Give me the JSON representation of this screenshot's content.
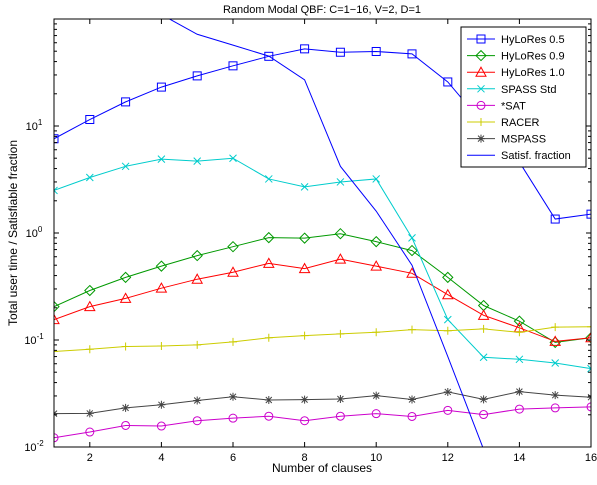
{
  "chart_data": {
    "type": "line",
    "title": "Random Modal QBF: C=1−16, V=2, D=1",
    "xlabel": "Number of clauses",
    "ylabel": "Total user time / Satisfiable fraction",
    "xlim": [
      1,
      16
    ],
    "ylim": [
      0.01,
      100
    ],
    "yscale": "log",
    "x_ticks": [
      2,
      4,
      6,
      8,
      10,
      12,
      14,
      16
    ],
    "x_tick_labels": [
      "2",
      "4",
      "6",
      "8",
      "10",
      "12",
      "14",
      "16"
    ],
    "y_ticks": [
      0.01,
      0.1,
      1,
      10
    ],
    "y_tick_labels": [
      {
        "base": "10",
        "exp": "-2"
      },
      {
        "base": "10",
        "exp": "-1"
      },
      {
        "base": "10",
        "exp": "0"
      },
      {
        "base": "10",
        "exp": "1"
      }
    ],
    "grid": false,
    "legend_position": "top-right",
    "x": [
      1,
      2,
      3,
      4,
      5,
      6,
      7,
      8,
      9,
      10,
      11,
      12,
      13,
      14,
      15,
      16
    ],
    "series": [
      {
        "name": "HyLoRes 0.5",
        "color": "#0000ff",
        "marker": "square",
        "values": [
          7.6,
          11.5,
          16.8,
          23.1,
          29.4,
          36.5,
          44.8,
          52.6,
          48.9,
          49.7,
          47.2,
          25.8,
          10.4,
          4.6,
          1.35,
          1.5
        ]
      },
      {
        "name": "HyLoRes 0.9",
        "color": "#009900",
        "marker": "diamond",
        "values": [
          0.205,
          0.29,
          0.385,
          0.49,
          0.615,
          0.745,
          0.905,
          0.895,
          0.985,
          0.83,
          0.685,
          0.385,
          0.21,
          0.15,
          0.095,
          0.105
        ]
      },
      {
        "name": "HyLoRes 1.0",
        "color": "#ff0000",
        "marker": "triangle",
        "values": [
          0.155,
          0.205,
          0.245,
          0.305,
          0.37,
          0.43,
          0.52,
          0.465,
          0.57,
          0.49,
          0.42,
          0.265,
          0.17,
          0.13,
          0.097,
          0.105
        ]
      },
      {
        "name": "SPASS Std",
        "color": "#00cccc",
        "marker": "x",
        "values": [
          2.5,
          3.3,
          4.2,
          4.9,
          4.7,
          5.0,
          3.2,
          2.7,
          3.0,
          3.2,
          0.9,
          0.155,
          0.069,
          0.066,
          0.061,
          0.054
        ]
      },
      {
        "name": "*SAT",
        "color": "#cc00cc",
        "marker": "circle",
        "values": [
          0.0122,
          0.0138,
          0.0159,
          0.0157,
          0.0176,
          0.0186,
          0.0194,
          0.0176,
          0.0194,
          0.0205,
          0.0193,
          0.022,
          0.0201,
          0.0226,
          0.0232,
          0.0237
        ]
      },
      {
        "name": "RACER",
        "color": "#cccc00",
        "marker": "plus",
        "values": [
          0.078,
          0.082,
          0.087,
          0.088,
          0.09,
          0.096,
          0.105,
          0.11,
          0.114,
          0.118,
          0.125,
          0.122,
          0.127,
          0.118,
          0.132,
          0.133
        ]
      },
      {
        "name": "MSPASS",
        "color": "#444444",
        "marker": "asterisk",
        "values": [
          0.0205,
          0.0206,
          0.0232,
          0.0248,
          0.0272,
          0.0295,
          0.0275,
          0.0277,
          0.0281,
          0.0302,
          0.0278,
          0.0327,
          0.0279,
          0.0329,
          0.0305,
          0.0292
        ]
      },
      {
        "name": "Satisf. fraction",
        "color": "#0000ff",
        "marker": "none",
        "values": [
          110,
          110,
          110,
          110,
          72,
          57,
          45,
          27,
          4.2,
          1.6,
          0.5,
          0.07,
          0.0095,
          0.009,
          0.009,
          0.009
        ]
      }
    ]
  }
}
